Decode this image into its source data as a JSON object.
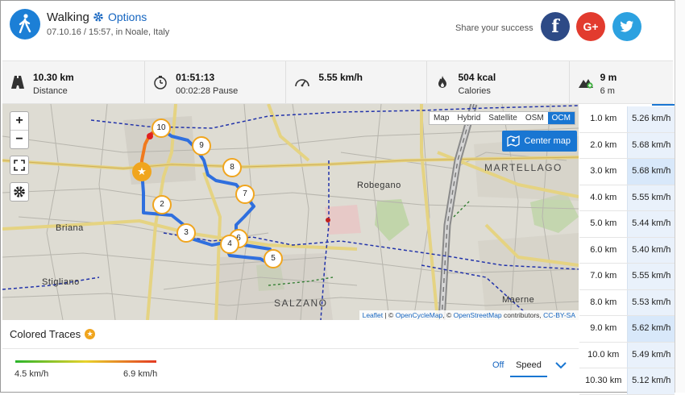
{
  "header": {
    "activity": "Walking",
    "options_label": "Options",
    "subline": "07.10.16 / 15:57, in Noale, Italy",
    "share_label": "Share your success",
    "social": [
      {
        "name": "facebook",
        "glyph": "f"
      },
      {
        "name": "google-plus",
        "glyph": "G+"
      },
      {
        "name": "twitter",
        "glyph": "t"
      }
    ]
  },
  "stats": [
    {
      "icon": "road-icon",
      "value": "10.30 km",
      "label": "Distance"
    },
    {
      "icon": "clock-icon",
      "value": "01:51:13",
      "label": "00:02:28 Pause"
    },
    {
      "icon": "speedometer-icon",
      "value": "5.55 km/h",
      "label": ""
    },
    {
      "icon": "flame-icon",
      "value": "504 kcal",
      "label": "Calories"
    },
    {
      "icon": "elevation-icon",
      "value": "9 m",
      "label": "6 m"
    }
  ],
  "map": {
    "layers": [
      "Map",
      "Hybrid",
      "Satellite",
      "OSM",
      "OCM"
    ],
    "active_layer": "OCM",
    "center_map_label": "Center map",
    "zoom_in": "+",
    "zoom_out": "−",
    "towns": [
      "Briana",
      "Stigliano",
      "Robegano",
      "MARTELLAGO",
      "SALZANO",
      "Maerne"
    ],
    "attribution": {
      "leaflet": "Leaflet",
      "sep1": " | © ",
      "ocm": "OpenCycleMap",
      "sep2": ", © ",
      "osm": "OpenStreetMap",
      "sep3": " contributors, ",
      "license": "CC-BY-SA"
    },
    "markers": [
      "10",
      "9",
      "8",
      "7",
      "2",
      "3",
      "6",
      "4",
      "5"
    ]
  },
  "splits": [
    {
      "km": "1.0 km",
      "speed": "5.26 km/h"
    },
    {
      "km": "2.0 km",
      "speed": "5.68 km/h"
    },
    {
      "km": "3.0 km",
      "speed": "5.68 km/h"
    },
    {
      "km": "4.0 km",
      "speed": "5.55 km/h"
    },
    {
      "km": "5.0 km",
      "speed": "5.44 km/h"
    },
    {
      "km": "6.0 km",
      "speed": "5.40 km/h"
    },
    {
      "km": "7.0 km",
      "speed": "5.55 km/h"
    },
    {
      "km": "8.0 km",
      "speed": "5.53 km/h"
    },
    {
      "km": "9.0 km",
      "speed": "5.62 km/h"
    },
    {
      "km": "10.0 km",
      "speed": "5.49 km/h"
    },
    {
      "km": "10.30 km",
      "speed": "5.12 km/h"
    }
  ],
  "traces": {
    "title": "Colored Traces",
    "min": "4.5 km/h",
    "max": "6.9 km/h",
    "off_label": "Off",
    "selected": "Speed"
  },
  "colors": {
    "accent": "#1976d2",
    "route": "#2f6fde",
    "marker": "#f0a51e"
  }
}
